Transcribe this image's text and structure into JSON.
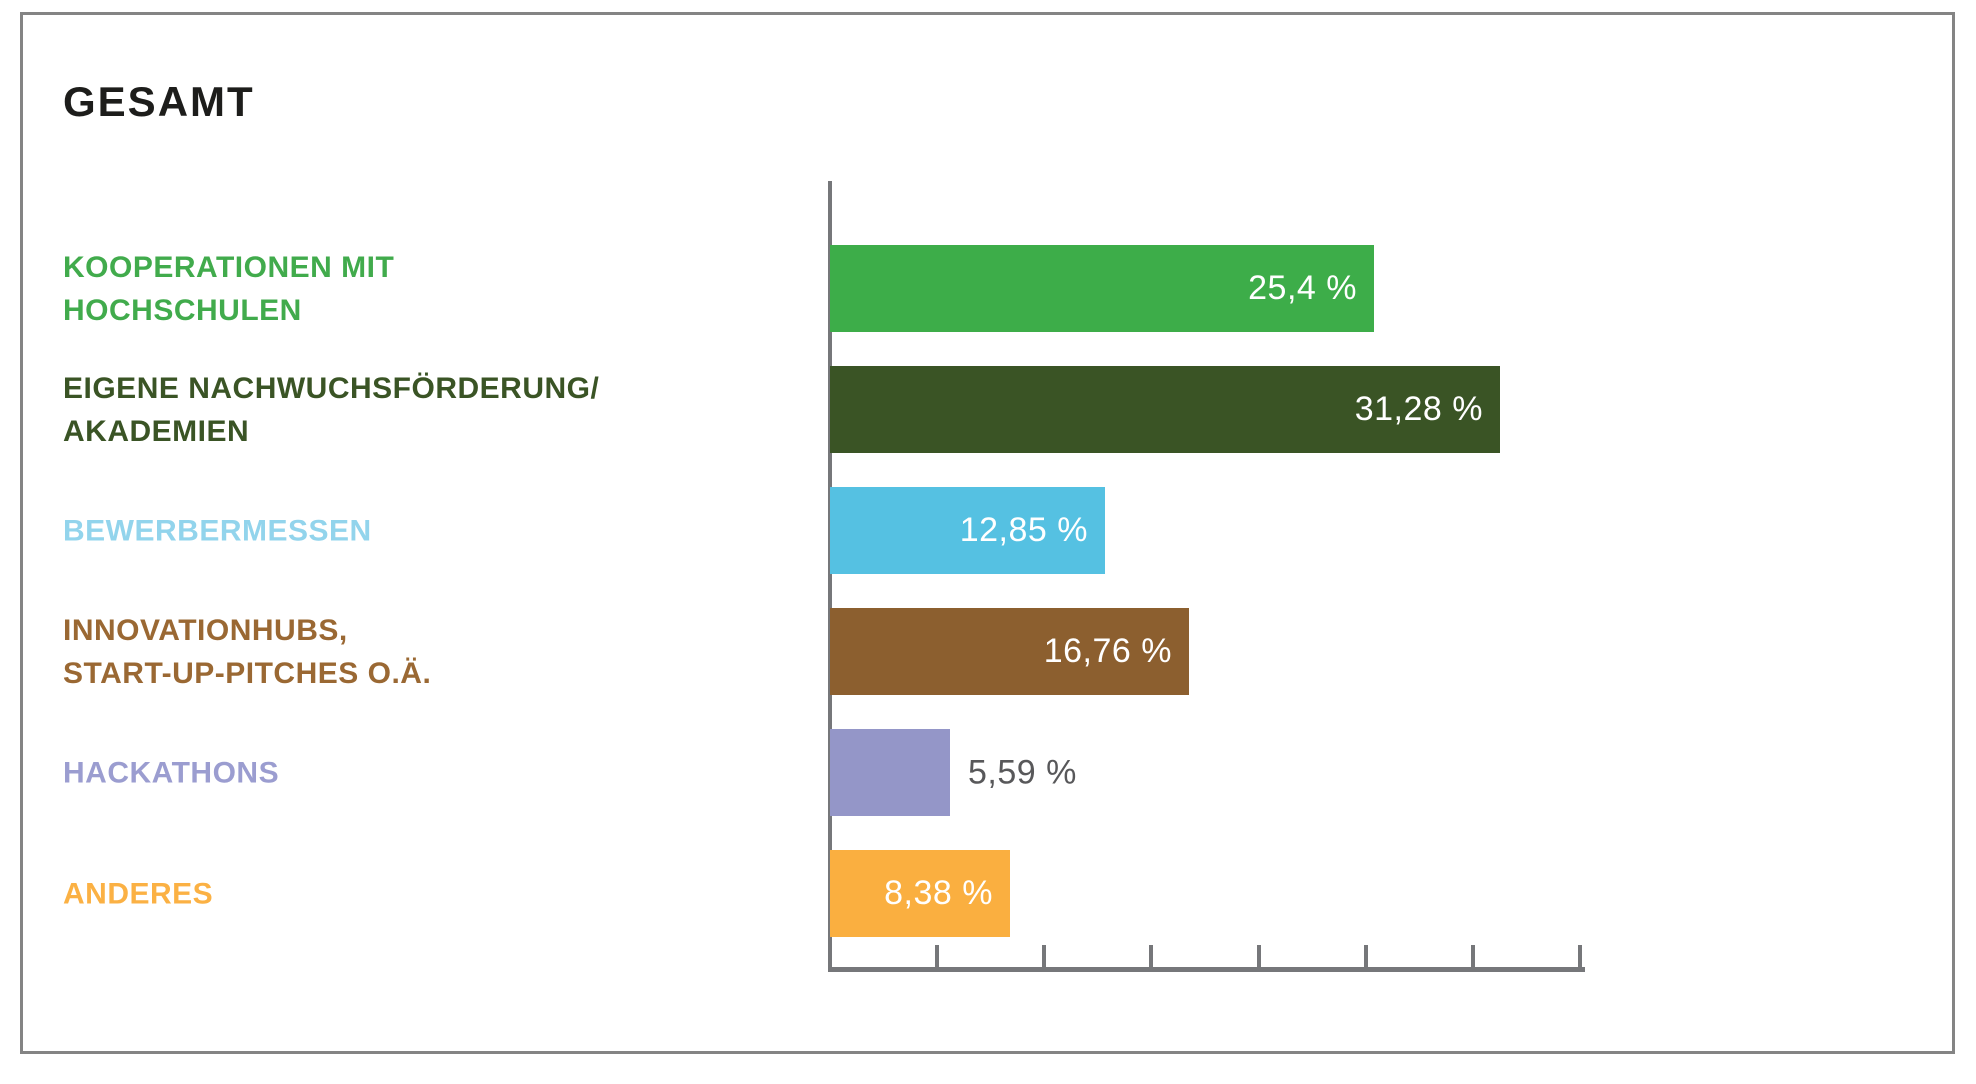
{
  "title": "GESAMT",
  "axis": {
    "color": "#76777a",
    "baseline_visible": true,
    "gridlines": false,
    "legend": "none"
  },
  "value_outside_color": "#58585a",
  "chart_data": {
    "type": "bar",
    "orientation": "horizontal",
    "title": "GESAMT",
    "xlabel": "",
    "ylabel": "",
    "xlim": [
      0,
      35
    ],
    "tick_percent": 5,
    "categories": [
      "KOOPERATIONEN MIT HOCHSCHULEN",
      "EIGENE NACHWUCHSFÖRDERUNG/ AKADEMIEN",
      "BEWERBERMESSEN",
      "INNOVATIONHUBS, START-UP-PITCHES O.Ä.",
      "HACKATHONS",
      "ANDERES"
    ],
    "values": [
      25.4,
      31.28,
      12.85,
      16.76,
      5.59,
      8.38
    ],
    "value_labels": [
      "25,4 %",
      "31,28 %",
      "12,85 %",
      "16,76 %",
      "5,59 %",
      "8,38 %"
    ],
    "points": [
      {
        "label_lines": [
          "KOOPERATIONEN MIT",
          "HOCHSCHULEN"
        ],
        "value": 25.4,
        "display": "25,4 %",
        "bar_color": "#3dad49",
        "label_color": "#41ab4c",
        "value_inside": true
      },
      {
        "label_lines": [
          "EIGENE NACHWUCHSFÖRDERUNG/",
          "AKADEMIEN"
        ],
        "value": 31.28,
        "display": "31,28 %",
        "bar_color": "#3a5425",
        "label_color": "#3a5425",
        "value_inside": true
      },
      {
        "label_lines": [
          "BEWERBERMESSEN"
        ],
        "value": 12.85,
        "display": "12,85 %",
        "bar_color": "#55c1e2",
        "label_color": "#92d4ec",
        "value_inside": true
      },
      {
        "label_lines": [
          "INNOVATIONHUBS,",
          "START-UP-PITCHES O.Ä."
        ],
        "value": 16.76,
        "display": "16,76 %",
        "bar_color": "#8c5f2f",
        "label_color": "#9a6833",
        "value_inside": true
      },
      {
        "label_lines": [
          "HACKATHONS"
        ],
        "value": 5.59,
        "display": "5,59 %",
        "bar_color": "#9496c8",
        "label_color": "#9b9dd0",
        "value_inside": false
      },
      {
        "label_lines": [
          "ANDERES"
        ],
        "value": 8.38,
        "display": "8,38 %",
        "bar_color": "#faaf40",
        "label_color": "#fbb144",
        "value_inside": true
      }
    ]
  }
}
